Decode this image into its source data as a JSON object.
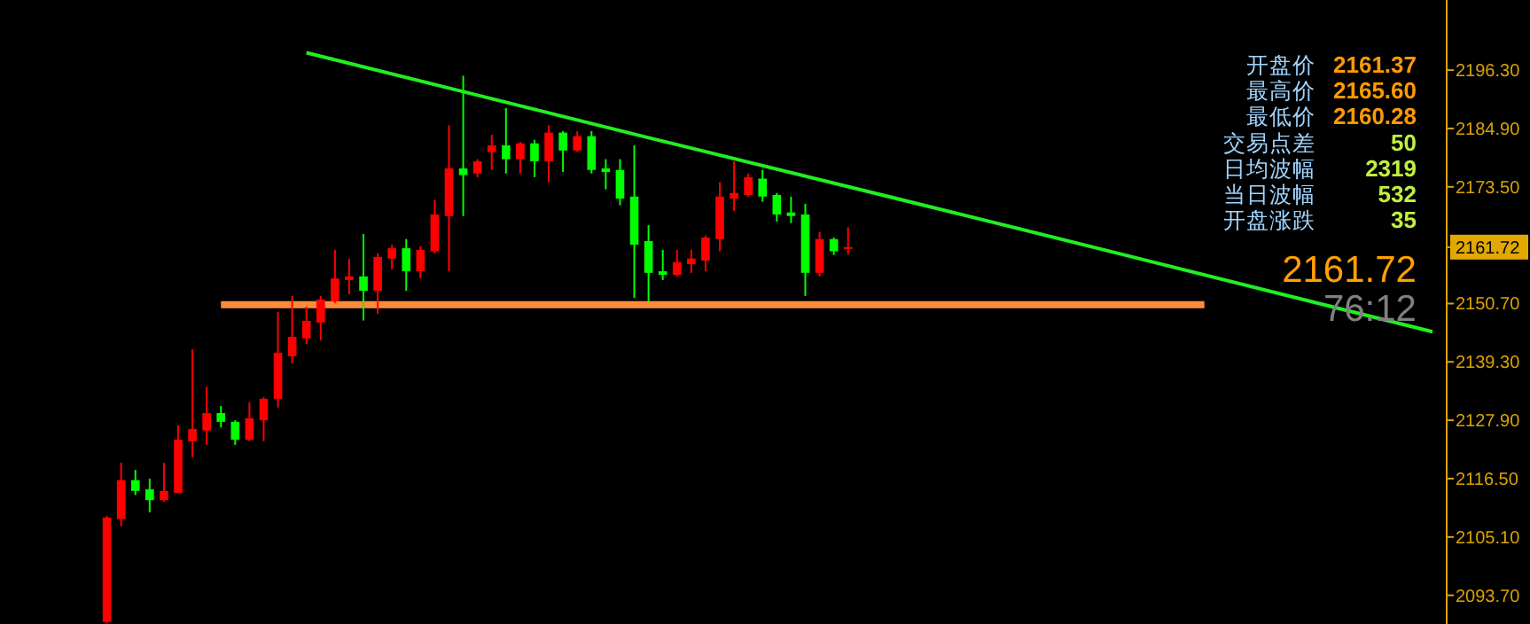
{
  "chart_data": {
    "type": "candlestick",
    "categories": [
      null,
      null,
      null,
      null,
      null,
      null,
      null,
      null,
      null,
      null,
      null,
      null,
      null,
      null,
      null,
      null,
      null,
      null,
      null,
      null,
      null,
      null,
      null,
      null,
      null,
      null,
      null,
      null,
      null,
      null,
      null,
      null,
      null,
      null,
      null,
      null,
      null,
      null,
      null,
      null,
      null,
      null,
      null,
      null,
      null,
      null,
      null,
      null,
      null,
      null,
      null,
      null,
      null,
      null,
      null,
      null,
      null,
      null,
      null,
      null,
      null,
      null,
      null,
      null,
      null,
      null,
      null,
      null,
      null,
      null,
      null,
      null,
      null,
      null,
      null,
      null,
      null,
      null,
      null,
      null,
      null,
      null,
      null,
      null,
      null,
      null,
      null,
      null,
      null,
      null,
      null,
      null,
      null,
      null,
      null,
      null,
      null,
      null,
      null,
      null,
      null
    ],
    "ohlc": [
      null,
      null,
      null,
      null,
      null,
      null,
      null,
      [
        2088.5,
        2109.2,
        2088.2,
        2108.9
      ],
      [
        2108.6,
        2119.6,
        2107.2,
        2116.2
      ],
      [
        2116.2,
        2118.2,
        2113.3,
        2114.1
      ],
      [
        2114.4,
        2116.5,
        2109.9,
        2112.3
      ],
      [
        2112.3,
        2119.6,
        2112.0,
        2114.1
      ],
      [
        2113.7,
        2126.9,
        2113.7,
        2124.1
      ],
      [
        2123.8,
        2141.8,
        2120.7,
        2126.2
      ],
      [
        2125.9,
        2134.5,
        2123.1,
        2129.3
      ],
      [
        2129.3,
        2130.7,
        2126.5,
        2127.6
      ],
      [
        2127.6,
        2127.9,
        2123.1,
        2124.1
      ],
      [
        2124.1,
        2131.4,
        2123.8,
        2128.3
      ],
      [
        2127.9,
        2132.4,
        2123.8,
        2132.1
      ],
      [
        2132.1,
        2149.1,
        2130.4,
        2141.1
      ],
      [
        2140.4,
        2152.2,
        2139.0,
        2144.2
      ],
      [
        2143.9,
        2150.1,
        2142.8,
        2147.3
      ],
      [
        2147.0,
        2152.2,
        2143.5,
        2151.5
      ],
      [
        2151.1,
        2161.2,
        2150.8,
        2155.6
      ],
      [
        2155.3,
        2159.5,
        2152.5,
        2156.0
      ],
      [
        2156.0,
        2164.3,
        2147.4,
        2153.2
      ],
      [
        2153.2,
        2160.5,
        2148.7,
        2159.8
      ],
      [
        2159.5,
        2162.2,
        2157.4,
        2161.5
      ],
      [
        2161.5,
        2163.3,
        2153.2,
        2157.0
      ],
      [
        2157.0,
        2161.9,
        2155.6,
        2161.2
      ],
      [
        2160.9,
        2170.9,
        2160.5,
        2168.1
      ],
      [
        2167.8,
        2185.5,
        2157.0,
        2177.1
      ],
      [
        2177.1,
        2195.2,
        2167.8,
        2175.8
      ],
      [
        2176.1,
        2178.9,
        2175.4,
        2178.5
      ],
      [
        2180.3,
        2183.7,
        2176.8,
        2181.6
      ],
      [
        2181.6,
        2188.9,
        2176.1,
        2178.9
      ],
      [
        2178.9,
        2182.3,
        2176.1,
        2182.0
      ],
      [
        2182.0,
        2182.7,
        2175.4,
        2178.5
      ],
      [
        2178.5,
        2185.5,
        2174.4,
        2184.1
      ],
      [
        2184.1,
        2184.4,
        2176.4,
        2180.6
      ],
      [
        2180.6,
        2184.4,
        2180.3,
        2183.4
      ],
      [
        2183.4,
        2184.4,
        2176.1,
        2176.8
      ],
      [
        2177.1,
        2178.9,
        2173.0,
        2176.4
      ],
      [
        2176.8,
        2178.9,
        2169.9,
        2171.2
      ],
      [
        2171.6,
        2181.6,
        2151.8,
        2162.2
      ],
      [
        2162.9,
        2166.0,
        2151.1,
        2156.7
      ],
      [
        2157.0,
        2161.2,
        2155.3,
        2156.3
      ],
      [
        2156.3,
        2161.2,
        2156.0,
        2158.8
      ],
      [
        2158.4,
        2161.2,
        2156.7,
        2159.5
      ],
      [
        2159.1,
        2164.0,
        2157.0,
        2163.6
      ],
      [
        2163.3,
        2174.4,
        2160.9,
        2171.6
      ],
      [
        2171.2,
        2178.5,
        2168.8,
        2172.3
      ],
      [
        2171.9,
        2176.1,
        2171.6,
        2175.4
      ],
      [
        2175.1,
        2176.8,
        2170.6,
        2171.6
      ],
      [
        2171.9,
        2172.3,
        2166.7,
        2168.1
      ],
      [
        2168.5,
        2171.6,
        2166.4,
        2167.8
      ],
      [
        2168.1,
        2170.2,
        2152.2,
        2156.7
      ],
      [
        2156.7,
        2164.7,
        2156.0,
        2163.3
      ],
      [
        2163.3,
        2163.6,
        2160.2,
        2160.9
      ],
      [
        2161.37,
        2165.6,
        2160.28,
        2161.72
      ],
      null,
      null,
      null,
      null,
      null,
      null,
      null,
      null,
      null,
      null,
      null,
      null,
      null,
      null,
      null,
      null,
      null,
      null,
      null,
      null,
      null,
      null,
      null,
      null,
      null,
      null,
      null,
      null,
      null,
      null,
      null,
      null,
      null,
      null,
      null,
      null,
      null,
      null,
      null,
      null,
      null
    ],
    "colors": [
      null,
      null,
      null,
      null,
      null,
      null,
      null,
      "#ff0000",
      "#ff0000",
      "#00ff00",
      "#00ff00",
      "#ff0000",
      "#ff0000",
      "#ff0000",
      "#ff0000",
      "#00ff00",
      "#00ff00",
      "#ff0000",
      "#ff0000",
      "#ff0000",
      "#ff0000",
      "#ff0000",
      "#ff0000",
      "#ff0000",
      "#ff0000",
      "#00ff00",
      "#ff0000",
      "#ff0000",
      "#00ff00",
      "#ff0000",
      "#ff0000",
      "#ff0000",
      "#00ff00",
      "#ff0000",
      "#ff0000",
      "#00ff00",
      "#ff0000",
      "#00ff00",
      "#ff0000",
      "#00ff00",
      "#ff0000",
      "#00ff00",
      "#00ff00",
      "#00ff00",
      "#00ff00",
      "#00ff00",
      "#00ff00",
      "#ff0000",
      "#ff0000",
      "#ff0000",
      "#ff0000",
      "#ff0000",
      "#ff0000",
      "#00ff00",
      "#00ff00",
      "#00ff00",
      "#00ff00",
      "#ff0000",
      "#00ff00",
      "#ff0000",
      null,
      null,
      null,
      null,
      null,
      null,
      null,
      null,
      null,
      null,
      null,
      null,
      null,
      null,
      null,
      null,
      null,
      null,
      null,
      null,
      null,
      null,
      null,
      null,
      null,
      null,
      null,
      null,
      null,
      null,
      null,
      null,
      null,
      null,
      null,
      null,
      null,
      null,
      null,
      null,
      null
    ],
    "series": [
      {
        "type": "line",
        "color": "#22ee22",
        "values": [
          null,
          null,
          null,
          null,
          null,
          null,
          null,
          null,
          null,
          null,
          null,
          null,
          null,
          null,
          null,
          null,
          null,
          null,
          null,
          null,
          null,
          2199.7,
          null,
          null,
          null,
          null,
          null,
          null,
          null,
          null,
          null,
          null,
          null,
          null,
          null,
          null,
          null,
          null,
          null,
          null,
          null,
          null,
          null,
          null,
          null,
          2183.1,
          null,
          null,
          null,
          null,
          null,
          null,
          null,
          null,
          null,
          null,
          null,
          null,
          null,
          null,
          null,
          null,
          null,
          null,
          null,
          null,
          null,
          null,
          null,
          2166.7,
          null,
          null,
          null,
          null,
          null,
          null,
          null,
          null,
          null,
          null,
          null,
          null,
          null,
          null,
          null,
          null,
          null,
          null,
          null,
          null,
          null,
          null,
          null,
          null,
          null,
          null,
          null,
          null,
          null,
          null,
          2145.2
        ]
      },
      {
        "type": "line",
        "color": "#ff8c3a",
        "values": [
          null,
          null,
          null,
          null,
          null,
          null,
          null,
          null,
          null,
          null,
          null,
          null,
          null,
          null,
          null,
          2150.5,
          null,
          null,
          null,
          null,
          null,
          null,
          null,
          null,
          null,
          null,
          null,
          null,
          null,
          null,
          null,
          null,
          null,
          null,
          null,
          null,
          null,
          null,
          null,
          null,
          null,
          null,
          null,
          null,
          null,
          null,
          null,
          null,
          null,
          null,
          null,
          null,
          null,
          null,
          null,
          null,
          null,
          null,
          null,
          null,
          null,
          null,
          null,
          null,
          null,
          null,
          null,
          null,
          null,
          null,
          null,
          null,
          null,
          null,
          null,
          null,
          null,
          null,
          null,
          null,
          null,
          null,
          null,
          null,
          2150.5,
          null,
          null,
          null,
          null,
          null,
          null,
          null,
          null,
          null,
          null,
          null,
          null,
          null,
          null,
          null,
          null
        ]
      }
    ],
    "ylim": [
      2088.1,
      2210.0
    ],
    "yticks": [
      {
        "value": 2093.7,
        "label": "2093.70"
      },
      {
        "value": 2105.1,
        "label": "2105.10"
      },
      {
        "value": 2116.5,
        "label": "2116.50"
      },
      {
        "value": 2127.9,
        "label": "2127.90"
      },
      {
        "value": 2139.3,
        "label": "2139.30"
      },
      {
        "value": 2150.7,
        "label": "2150.70"
      },
      {
        "value": 2161.72,
        "label": "2161.72"
      },
      {
        "value": 2173.5,
        "label": "2173.50"
      },
      {
        "value": 2184.9,
        "label": "2184.90"
      },
      {
        "value": 2196.3,
        "label": "2196.30"
      }
    ],
    "annotations": [
      "开盘价 2161.37",
      "最高价 2165.60",
      "最低价 2160.28",
      "交易点差 50",
      "日均波幅 2319",
      "当日波幅 532",
      "开盘涨跌 35",
      "2161.72",
      "76:12"
    ],
    "tick_labels": "y",
    "grid": false
  }
}
